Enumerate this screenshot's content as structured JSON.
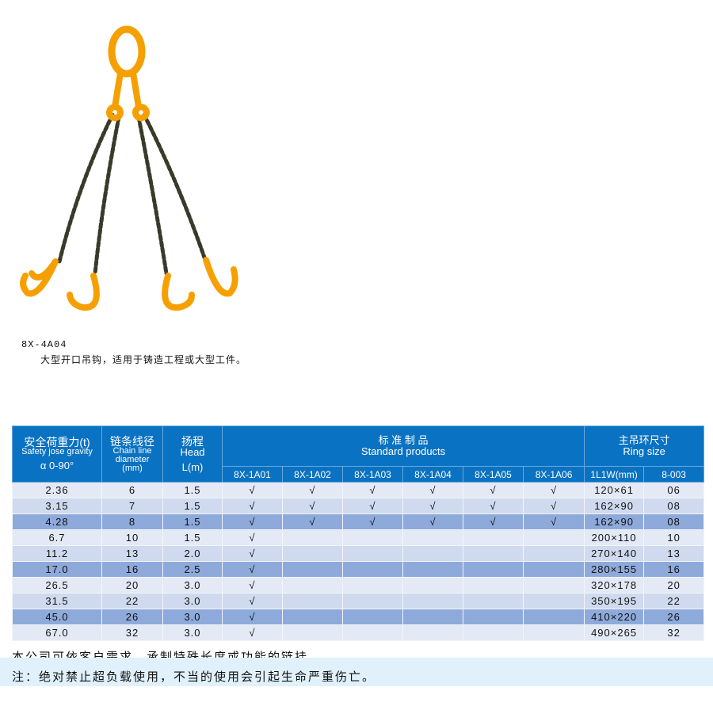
{
  "product": {
    "model": "8X-4A04",
    "description": "大型开口吊钩，适用于铸造工程或大型工件。"
  },
  "colors": {
    "header": "#0a72c2",
    "row_light": "#e3e9f5",
    "row_mid": "#cfdaee",
    "row_dark": "#8eaadb",
    "chain_orange": "#f5a000",
    "note_band": "#e0f1fb"
  },
  "table": {
    "headers": {
      "load_cn": "安全荷重力(t)",
      "load_en": "Safety jose gravity",
      "load_angle": "α 0-90°",
      "chain_cn": "链条线径",
      "chain_en1": "Chain line",
      "chain_en2": "diameter",
      "chain_unit": "(mm)",
      "head_cn": "扬程",
      "head_en": "Head",
      "head_unit": "L(m)",
      "std_cn": "标 准 制 品",
      "std_en": "Standard products",
      "ring_cn": "主吊环尺寸",
      "ring_en": "Ring size",
      "std_cols": [
        "8X-1A01",
        "8X-1A02",
        "8X-1A03",
        "8X-1A04",
        "8X-1A05",
        "8X-1A06"
      ],
      "ring_cols": [
        "1L1W(mm)",
        "8-003"
      ]
    },
    "rows": [
      {
        "load": "2.36",
        "dia": "6",
        "head": "1.5",
        "std": [
          "√",
          "√",
          "√",
          "√",
          "√",
          "√"
        ],
        "ring": "120×61",
        "code": "06"
      },
      {
        "load": "3.15",
        "dia": "7",
        "head": "1.5",
        "std": [
          "√",
          "√",
          "√",
          "√",
          "√",
          "√"
        ],
        "ring": "162×90",
        "code": "08"
      },
      {
        "load": "4.28",
        "dia": "8",
        "head": "1.5",
        "std": [
          "√",
          "√",
          "√",
          "√",
          "√",
          "√"
        ],
        "ring": "162×90",
        "code": "08"
      },
      {
        "load": "6.7",
        "dia": "10",
        "head": "1.5",
        "std": [
          "√",
          "",
          "",
          "",
          "",
          ""
        ],
        "ring": "200×110",
        "code": "10"
      },
      {
        "load": "11.2",
        "dia": "13",
        "head": "2.0",
        "std": [
          "√",
          "",
          "",
          "",
          "",
          ""
        ],
        "ring": "270×140",
        "code": "13"
      },
      {
        "load": "17.0",
        "dia": "16",
        "head": "2.5",
        "std": [
          "√",
          "",
          "",
          "",
          "",
          ""
        ],
        "ring": "280×155",
        "code": "16"
      },
      {
        "load": "26.5",
        "dia": "20",
        "head": "3.0",
        "std": [
          "√",
          "",
          "",
          "",
          "",
          ""
        ],
        "ring": "320×178",
        "code": "20"
      },
      {
        "load": "31.5",
        "dia": "22",
        "head": "3.0",
        "std": [
          "√",
          "",
          "",
          "",
          "",
          ""
        ],
        "ring": "350×195",
        "code": "22"
      },
      {
        "load": "45.0",
        "dia": "26",
        "head": "3.0",
        "std": [
          "√",
          "",
          "",
          "",
          "",
          ""
        ],
        "ring": "410×220",
        "code": "26"
      },
      {
        "load": "67.0",
        "dia": "32",
        "head": "3.0",
        "std": [
          "√",
          "",
          "",
          "",
          "",
          ""
        ],
        "ring": "490×265",
        "code": "32"
      }
    ]
  },
  "notes": {
    "custom": "本公司可依客户需求，承制特殊长度或功能的链挂。",
    "warning": "注：绝对禁止超负载使用，不当的使用会引起生命严重伤亡。"
  }
}
